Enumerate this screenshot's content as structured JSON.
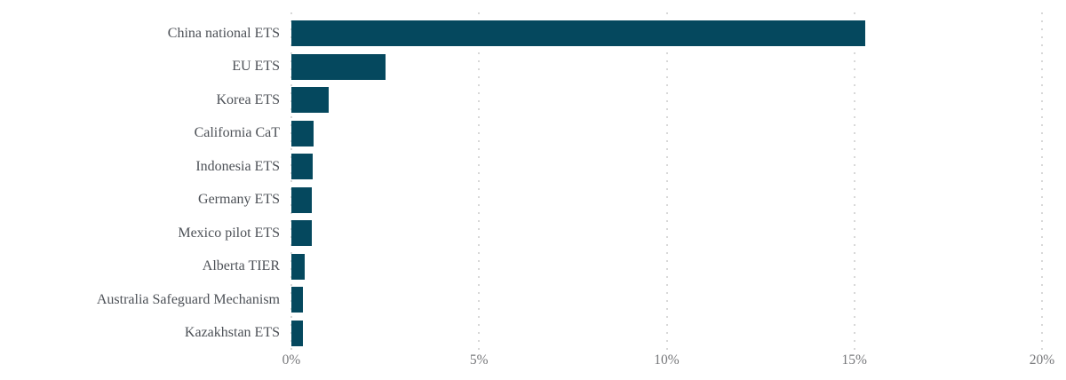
{
  "chart_data": {
    "type": "bar",
    "orientation": "horizontal",
    "title": "",
    "xlabel": "",
    "ylabel": "",
    "categories": [
      "China national ETS",
      "EU ETS",
      "Korea ETS",
      "California CaT",
      "Indonesia ETS",
      "Germany ETS",
      "Mexico pilot ETS",
      "Alberta TIER",
      "Australia Safeguard Mechanism",
      "Kazakhstan ETS"
    ],
    "values": [
      15.3,
      2.5,
      1.0,
      0.6,
      0.57,
      0.55,
      0.55,
      0.35,
      0.31,
      0.3
    ],
    "unit": "%",
    "xlim": [
      0,
      20
    ],
    "x_ticks": [
      "0%",
      "5%",
      "10%",
      "15%",
      "20%"
    ],
    "x_tick_values": [
      0,
      5,
      10,
      15,
      20
    ],
    "grid": "vertical-dotted",
    "legend": "none",
    "colors": {
      "bar": "#05485e",
      "category_label": "#4d5157",
      "tick_label": "#76777a",
      "gridline": "#d8d8d8",
      "background": "#ffffff"
    }
  }
}
